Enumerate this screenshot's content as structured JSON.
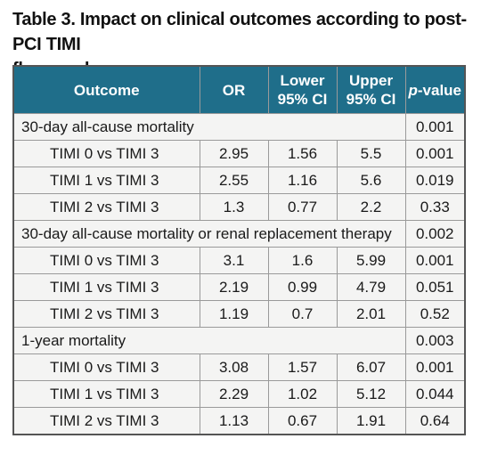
{
  "caption": {
    "line1": "Table 3. Impact on clinical outcomes according to post-PCI TIMI",
    "line2": "flow grade."
  },
  "table": {
    "headers": {
      "outcome": "Outcome",
      "or": "OR",
      "lower_1": "Lower",
      "lower_2": "95% CI",
      "upper_1": "Upper",
      "upper_2": "95% CI",
      "p_italic": "p",
      "p_rest": "-value"
    },
    "groups": [
      {
        "title": "30-day all-cause mortality",
        "p": "0.001",
        "rows": [
          {
            "label": "TIMI 0 vs TIMI 3",
            "or": "2.95",
            "lower": "1.56",
            "upper": "5.5",
            "p": "0.001"
          },
          {
            "label": "TIMI 1 vs TIMI 3",
            "or": "2.55",
            "lower": "1.16",
            "upper": "5.6",
            "p": "0.019"
          },
          {
            "label": "TIMI 2 vs TIMI 3",
            "or": "1.3",
            "lower": "0.77",
            "upper": "2.2",
            "p": "0.33"
          }
        ]
      },
      {
        "title": "30-day all-cause mortality or renal replacement therapy",
        "p": "0.002",
        "rows": [
          {
            "label": "TIMI 0 vs TIMI 3",
            "or": "3.1",
            "lower": "1.6",
            "upper": "5.99",
            "p": "0.001"
          },
          {
            "label": "TIMI 1 vs TIMI 3",
            "or": "2.19",
            "lower": "0.99",
            "upper": "4.79",
            "p": "0.051"
          },
          {
            "label": "TIMI 2 vs TIMI 3",
            "or": "1.19",
            "lower": "0.7",
            "upper": "2.01",
            "p": "0.52"
          }
        ]
      },
      {
        "title": "1-year mortality",
        "p": "0.003",
        "rows": [
          {
            "label": "TIMI 0 vs TIMI 3",
            "or": "3.08",
            "lower": "1.57",
            "upper": "6.07",
            "p": "0.001"
          },
          {
            "label": "TIMI 1 vs TIMI 3",
            "or": "2.29",
            "lower": "1.02",
            "upper": "5.12",
            "p": "0.044"
          },
          {
            "label": "TIMI 2 vs TIMI 3",
            "or": "1.13",
            "lower": "0.67",
            "upper": "1.91",
            "p": "0.64"
          }
        ]
      }
    ]
  },
  "colors": {
    "header_bg": "#1f6e8a",
    "header_text": "#ffffff",
    "body_bg": "#f4f4f3",
    "border": "#9a9a9a"
  }
}
